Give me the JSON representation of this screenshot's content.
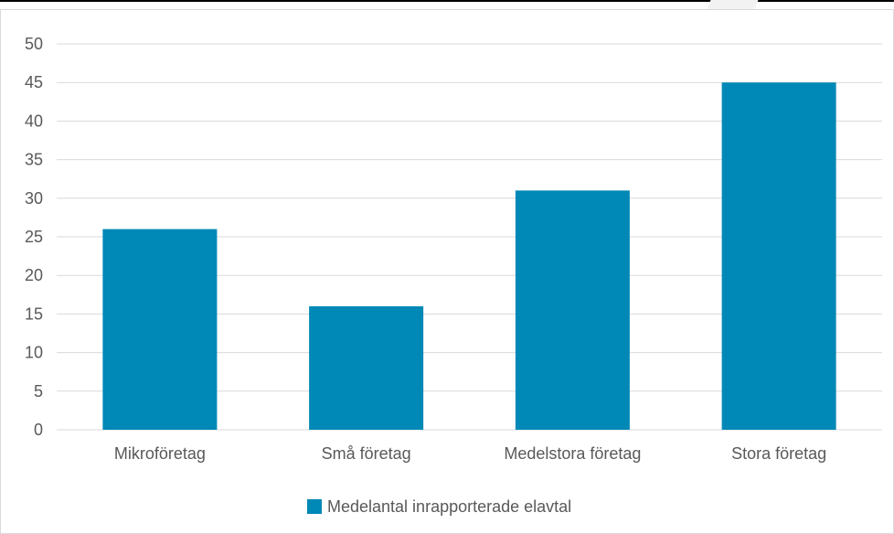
{
  "chart_data": {
    "type": "bar",
    "categories": [
      "Mikroföretag",
      "Små företag",
      "Medelstora företag",
      "Stora företag"
    ],
    "series": [
      {
        "name": "Medelantal inrapporterade elavtal",
        "values": [
          26,
          16,
          31,
          45
        ],
        "color": "#0088b6"
      }
    ],
    "ylim": [
      0,
      50
    ],
    "y_ticks": [
      0,
      5,
      10,
      15,
      20,
      25,
      30,
      35,
      40,
      45,
      50
    ],
    "grid": true,
    "legend": "bottom-center"
  },
  "colors": {
    "bar": "#0088b6",
    "grid": "#d9d9d9",
    "text": "#595959"
  }
}
